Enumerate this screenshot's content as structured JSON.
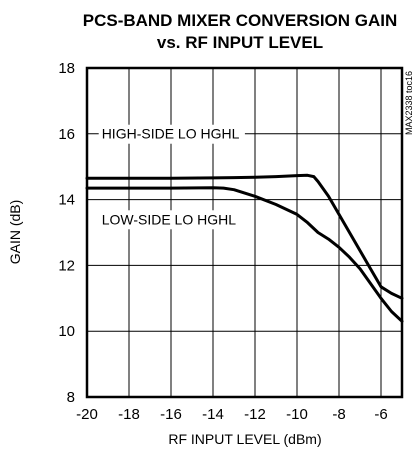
{
  "chart_data": {
    "type": "line",
    "title_line1": "PCS-BAND MIXER CONVERSION GAIN",
    "title_line2": "vs. RF INPUT LEVEL",
    "xlabel": "RF INPUT LEVEL (dBm)",
    "ylabel": "GAIN (dB)",
    "xlim": [
      -20,
      -5
    ],
    "ylim": [
      8,
      18
    ],
    "xticks": [
      -20,
      -18,
      -16,
      -14,
      -12,
      -10,
      -8,
      -6
    ],
    "yticks": [
      8,
      10,
      12,
      14,
      16,
      18
    ],
    "grid": true,
    "side_id": "MAX2338 toc16",
    "annotations": [
      {
        "text": "HIGH-SIDE LO HGHL",
        "x": -19.3,
        "y": 15.85
      },
      {
        "text": "LOW-SIDE LO HGHL",
        "x": -19.3,
        "y": 13.25
      }
    ],
    "series": [
      {
        "x": [
          -20,
          -18,
          -16,
          -14,
          -13,
          -12,
          -11,
          -10,
          -9.5,
          -9.2,
          -9.0,
          -8.5,
          -8,
          -7.5,
          -7,
          -6.5,
          -6,
          -5.5,
          -5
        ],
        "y": [
          14.65,
          14.65,
          14.65,
          14.66,
          14.67,
          14.68,
          14.7,
          14.73,
          14.74,
          14.7,
          14.55,
          14.1,
          13.55,
          13.0,
          12.45,
          11.9,
          11.35,
          11.15,
          11.0
        ]
      },
      {
        "x": [
          -20,
          -18,
          -16,
          -14,
          -13.5,
          -13,
          -12,
          -11,
          -10,
          -9.5,
          -9,
          -8.5,
          -8,
          -7.5,
          -7,
          -6.5,
          -6,
          -5.5,
          -5
        ],
        "y": [
          14.35,
          14.35,
          14.35,
          14.36,
          14.35,
          14.3,
          14.1,
          13.85,
          13.55,
          13.3,
          13.0,
          12.8,
          12.55,
          12.25,
          11.9,
          11.45,
          11.0,
          10.6,
          10.3
        ]
      }
    ]
  }
}
